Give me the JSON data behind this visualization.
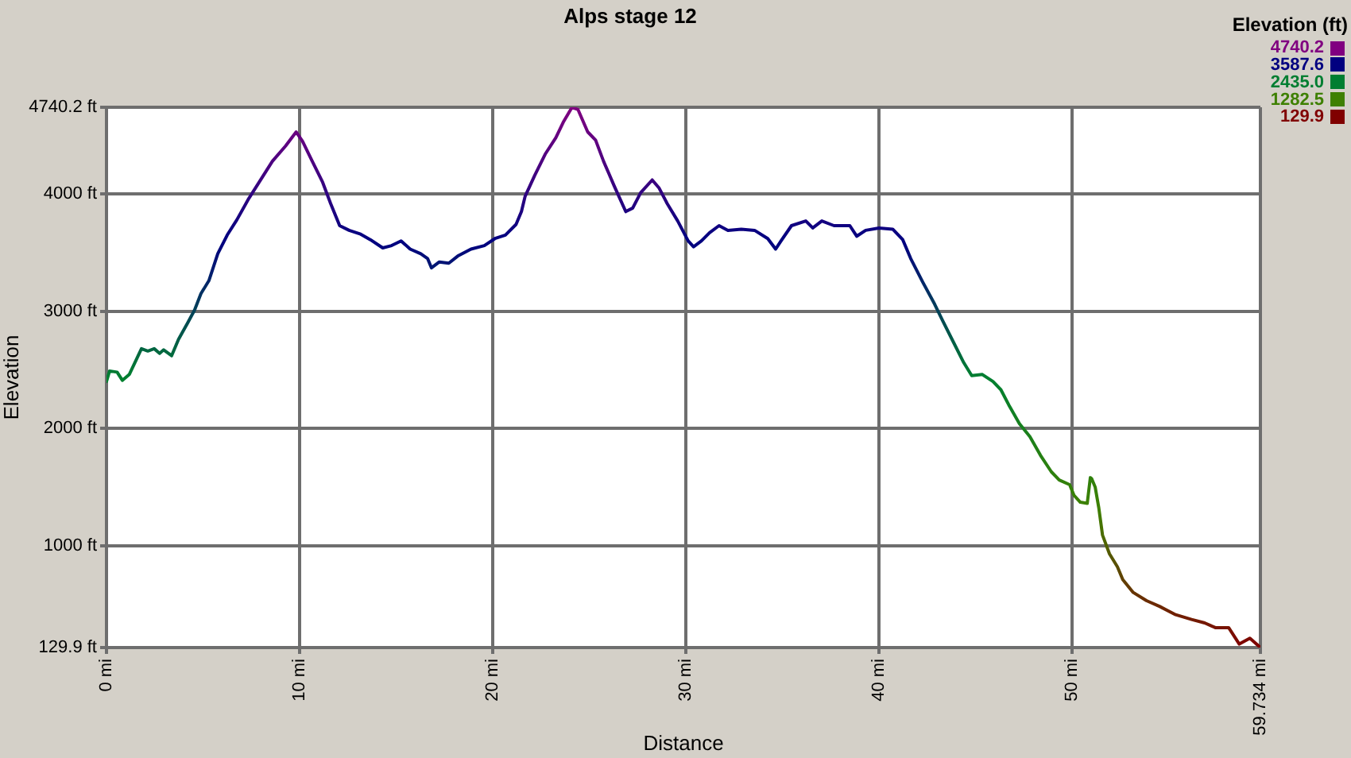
{
  "chart_data": {
    "type": "line",
    "title": "Alps stage 12",
    "xlabel": "Distance",
    "ylabel": "Elevation",
    "clabel": "Elevation (ft)",
    "x": [
      0,
      0.16,
      0.55,
      0.82,
      1.18,
      1.81,
      2.14,
      2.47,
      2.75,
      2.96,
      3.37,
      3.73,
      4.2,
      4.56,
      4.89,
      5.3,
      5.76,
      6.25,
      6.75,
      7.36,
      7.9,
      8.59,
      9.27,
      9.82,
      10.15,
      10.65,
      11.19,
      11.6,
      12.07,
      12.56,
      13.12,
      13.66,
      14.3,
      14.76,
      15.25,
      15.72,
      16.27,
      16.62,
      16.82,
      17.23,
      17.72,
      18.18,
      18.87,
      19.56,
      20.11,
      20.65,
      21.2,
      21.48,
      21.67,
      22.17,
      22.71,
      23.26,
      23.67,
      24.1,
      24.41,
      24.91,
      25.32,
      25.73,
      26.28,
      26.88,
      27.24,
      27.65,
      28.25,
      28.61,
      29.02,
      29.57,
      30.11,
      30.39,
      30.8,
      31.22,
      31.71,
      32.17,
      32.86,
      33.55,
      34.23,
      34.64,
      34.92,
      35.46,
      36.2,
      36.56,
      37.03,
      37.66,
      38.48,
      38.84,
      39.3,
      39.99,
      40.7,
      41.22,
      41.63,
      42.25,
      42.87,
      43.28,
      43.83,
      44.38,
      44.79,
      45.34,
      45.89,
      46.3,
      46.71,
      47.26,
      47.8,
      48.35,
      48.91,
      49.32,
      49.86,
      50.08,
      50.41,
      50.77,
      50.93,
      51.0,
      51.18,
      51.37,
      51.56,
      51.92,
      52.33,
      52.61,
      53.15,
      53.84,
      54.53,
      55.35,
      56.17,
      56.85,
      57.4,
      58.09,
      58.64,
      59.19,
      59.734
    ],
    "values": [
      2400,
      2490,
      2480,
      2410,
      2460,
      2680,
      2660,
      2680,
      2640,
      2670,
      2620,
      2760,
      2900,
      3010,
      3150,
      3260,
      3490,
      3650,
      3780,
      3960,
      4100,
      4280,
      4410,
      4530,
      4450,
      4280,
      4100,
      3920,
      3730,
      3690,
      3660,
      3610,
      3540,
      3560,
      3600,
      3530,
      3490,
      3450,
      3370,
      3420,
      3410,
      3470,
      3530,
      3560,
      3620,
      3650,
      3740,
      3850,
      3980,
      4160,
      4340,
      4480,
      4620,
      4740,
      4720,
      4530,
      4460,
      4280,
      4070,
      3850,
      3880,
      4010,
      4120,
      4050,
      3920,
      3770,
      3600,
      3550,
      3600,
      3670,
      3730,
      3690,
      3700,
      3690,
      3620,
      3530,
      3600,
      3730,
      3770,
      3710,
      3770,
      3730,
      3730,
      3640,
      3690,
      3710,
      3700,
      3610,
      3450,
      3250,
      3060,
      2920,
      2740,
      2560,
      2450,
      2460,
      2400,
      2330,
      2200,
      2040,
      1930,
      1770,
      1630,
      1560,
      1520,
      1430,
      1370,
      1360,
      1580,
      1570,
      1500,
      1320,
      1090,
      930,
      820,
      710,
      600,
      530,
      480,
      410,
      370,
      340,
      300,
      300,
      160,
      210,
      130
    ],
    "colors": [
      "#02802f",
      "#007a34",
      "#007b33",
      "#01802f",
      "#007d32",
      "#006541",
      "#006740",
      "#006541",
      "#00693e",
      "#006640",
      "#006b3d",
      "#005c47",
      "#004c50",
      "#004058",
      "#003162",
      "#002469",
      "#000b79",
      "#070080",
      "#150080",
      "#290080",
      "#390080",
      "#4d0080",
      "#5b0080",
      "#690080",
      "#600080",
      "#4d0080",
      "#390080",
      "#250080",
      "#100080",
      "#0b0080",
      "#080080",
      "#020080",
      "#00057d",
      "#00037e",
      "#010080",
      "#00067c",
      "#000b79",
      "#000f76",
      "#001871",
      "#001374",
      "#001474",
      "#000d78",
      "#00067c",
      "#00037e",
      "#040080",
      "#070080",
      "#110080",
      "#1d0080",
      "#2c0080",
      "#400080",
      "#540080",
      "#630080",
      "#730080",
      "#800080",
      "#7e0080",
      "#690080",
      "#610080",
      "#4d0080",
      "#360080",
      "#1d0080",
      "#200080",
      "#2f0080",
      "#3b0080",
      "#330080",
      "#250080",
      "#140080",
      "#010080",
      "#00047d",
      "#010080",
      "#090080",
      "#100080",
      "#0b0080",
      "#0c0080",
      "#0b0080",
      "#040080",
      "#00067c",
      "#010080",
      "#100080",
      "#140080",
      "#0e0080",
      "#140080",
      "#100080",
      "#100080",
      "#060080",
      "#0b0080",
      "#0e0080",
      "#0c0080",
      "#020080",
      "#000f76",
      "#002569",
      "#003b5b",
      "#004a52",
      "#005e45",
      "#007239",
      "#007e31",
      "#007d32",
      "#02802f",
      "#06802c",
      "#0d8026",
      "#168020",
      "#1c801b",
      "#258014",
      "#2d800e",
      "#31800c",
      "#33800a",
      "#388006",
      "#3b8004",
      "#3c8003",
      "#2f800c",
      "#30800c",
      "#348009",
      "#3e8002",
      "#4b6b00",
      "#545900",
      "#5a4d00",
      "#604000",
      "#663400",
      "#6a2c00",
      "#6d2700",
      "#701f00",
      "#731b00",
      "#741700",
      "#771300",
      "#771300",
      "#7e0300",
      "#7c0900",
      "#800000"
    ],
    "xlim": [
      0,
      59.734
    ],
    "xticks": [
      {
        "value": 0,
        "label": "0 mi"
      },
      {
        "value": 10,
        "label": "10 mi"
      },
      {
        "value": 20,
        "label": "20 mi"
      },
      {
        "value": 30,
        "label": "30 mi"
      },
      {
        "value": 40,
        "label": "40 mi"
      },
      {
        "value": 50,
        "label": "50 mi"
      },
      {
        "value": 59.734,
        "label": "59.734 mi"
      }
    ],
    "ylim": [
      129.9,
      4740.2
    ],
    "yticks": [
      {
        "value": 129.9,
        "label": "129.9 ft"
      },
      {
        "value": 1000,
        "label": "1000 ft"
      },
      {
        "value": 2000,
        "label": "2000 ft"
      },
      {
        "value": 3000,
        "label": "3000 ft"
      },
      {
        "value": 4000,
        "label": "4000 ft"
      },
      {
        "value": 4740.2,
        "label": "4740.2 ft"
      }
    ],
    "clim": [
      129.9,
      4740.2
    ],
    "cticks": [
      4740.2,
      3587.6,
      {
        "value": 2435,
        "label": "2435.0"
      },
      1282.5,
      129.9
    ],
    "grid": true
  }
}
